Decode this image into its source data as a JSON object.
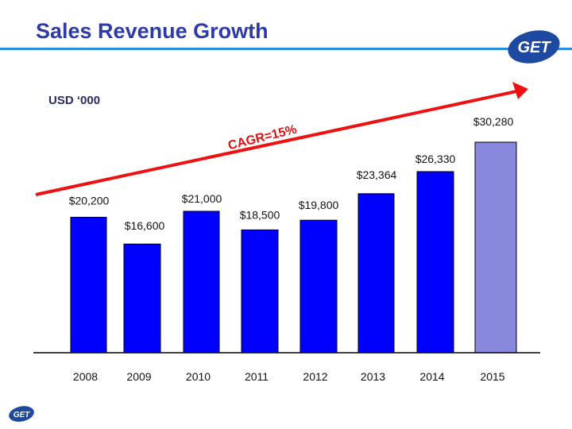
{
  "title": "Sales Revenue Growth",
  "unit_label": "USD ‘000",
  "logo_text": "GET",
  "chart_data": {
    "type": "bar",
    "categories": [
      "2008",
      "2009",
      "2010",
      "2011",
      "2012",
      "2013",
      "2014",
      "2015"
    ],
    "values": [
      20200,
      16600,
      21000,
      18500,
      19800,
      23364,
      26330,
      30280
    ],
    "data_labels": [
      "$20,200",
      "$16,600",
      "$21,000",
      "$18,500",
      "$19,800",
      "$23,364",
      "$26,330",
      "$30,280"
    ],
    "bar_colors": [
      "#0000ff",
      "#0000ff",
      "#0000ff",
      "#0000ff",
      "#0000ff",
      "#0000ff",
      "#0000ff",
      "#8888dd"
    ],
    "annotation": "CAGR=15%",
    "annotation_color": "#e01010",
    "trend_arrow_color": "#ee1111",
    "grid": false,
    "legend": "none"
  }
}
